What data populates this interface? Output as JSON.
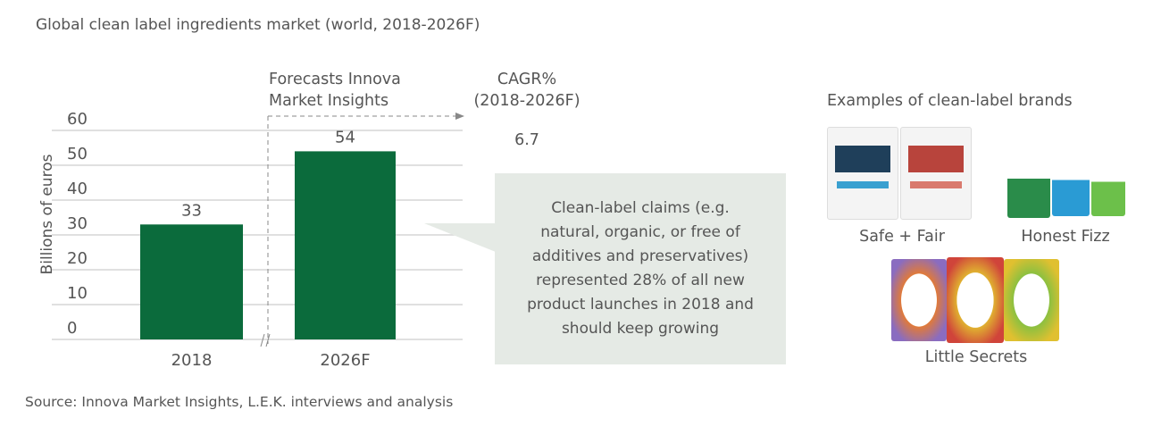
{
  "title": "Global clean label ingredients market (world, 2018-2026F)",
  "source": "Source: Innova Market Insights, L.E.K. interviews and analysis",
  "chart_data": {
    "type": "bar",
    "categories": [
      "2018",
      "2026F"
    ],
    "values": [
      33,
      54
    ],
    "data_labels": [
      "33",
      "54"
    ],
    "ylabel": "Billions of euros",
    "ylim": [
      0,
      60
    ],
    "yticks": [
      "0",
      "10",
      "20",
      "30",
      "40",
      "50",
      "60"
    ],
    "grid": true,
    "bar_color": "#0b6b3c",
    "forecast_annotation": "Forecasts Innova Market Insights",
    "cagr_header": "CAGR% (2018-2026F)",
    "cagr_value": "6.7"
  },
  "callout": "Clean-label claims (e.g. natural, organic, or free of additives and preservatives) represented 28% of all new product launches in 2018 and should keep growing",
  "brands": {
    "title": "Examples of clean-label brands",
    "items": [
      {
        "label": "Safe + Fair"
      },
      {
        "label": "Honest Fizz"
      },
      {
        "label": "Little Secrets"
      }
    ]
  }
}
